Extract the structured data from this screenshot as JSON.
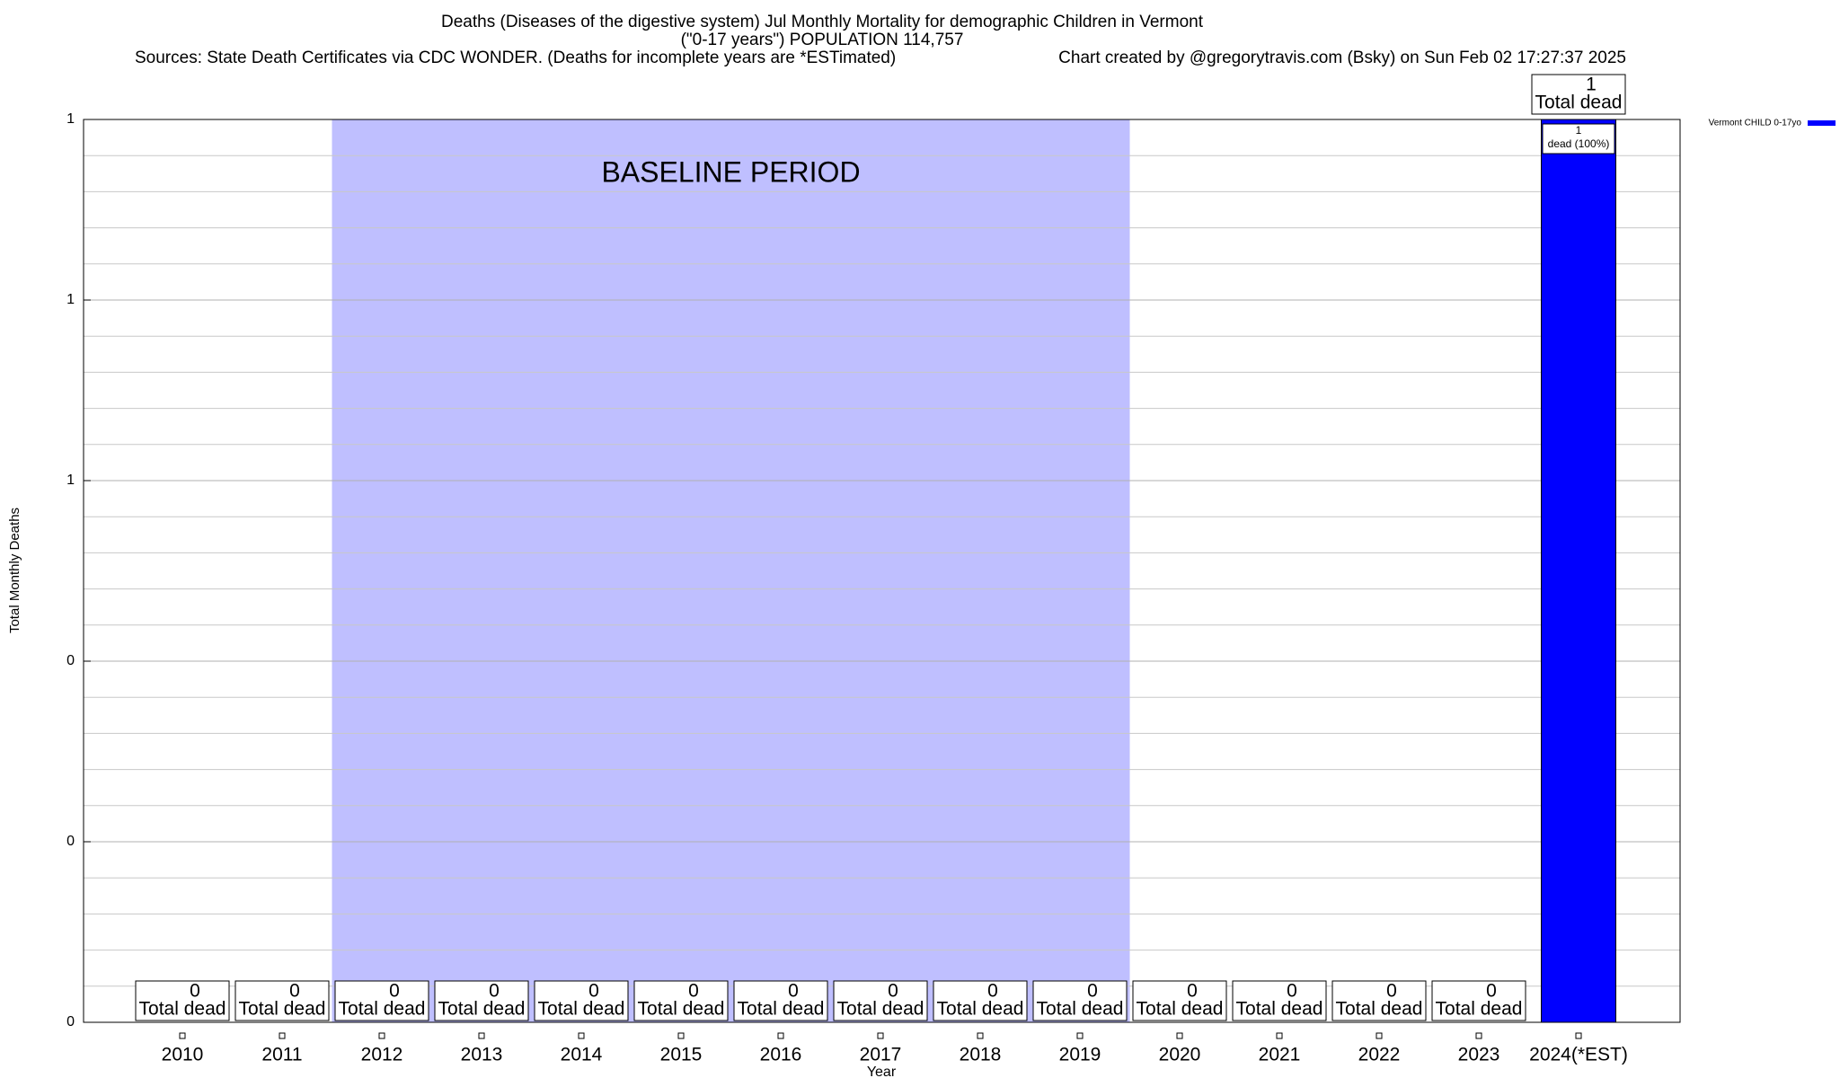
{
  "chart_data": {
    "type": "bar",
    "title": "Deaths (Diseases of the digestive system) Jul Monthly Mortality for demographic Children in Vermont",
    "subtitle": "(\"0-17 years\") POPULATION 114,757",
    "source": "Sources: State Death Certificates via CDC WONDER. (Deaths for incomplete years are *ESTimated)",
    "credit": "Chart created by @gregorytravis.com (Bsky) on Sun Feb 02 17:27:37 2025",
    "xlabel": "Year",
    "ylabel": "Total Monthly Deaths",
    "categories": [
      "2010",
      "2011",
      "2012",
      "2013",
      "2014",
      "2015",
      "2016",
      "2017",
      "2018",
      "2019",
      "2020",
      "2021",
      "2022",
      "2023",
      "2024(*EST)"
    ],
    "series": [
      {
        "name": "Vermont CHILD 0-17yo",
        "color": "#0000ff",
        "values": [
          0,
          0,
          0,
          0,
          0,
          0,
          0,
          0,
          0,
          0,
          0,
          0,
          0,
          0,
          1
        ]
      }
    ],
    "total_label": "Total dead",
    "percent_labels": [
      null,
      null,
      null,
      null,
      null,
      null,
      null,
      null,
      null,
      null,
      null,
      null,
      null,
      null,
      "dead (100%)"
    ],
    "baseline": {
      "label": "BASELINE PERIOD",
      "start": "2012",
      "end": "2019",
      "color": "#bfbfff"
    },
    "ylim": [
      0,
      1
    ],
    "yticks": [
      0,
      {
        "value": 0.2,
        "label": "0"
      },
      {
        "value": 0.4,
        "label": "0"
      },
      {
        "value": 0.6,
        "label": "1"
      },
      {
        "value": 0.8,
        "label": "1"
      },
      1
    ],
    "yminorticks": [
      0.04,
      0.08,
      0.12,
      0.16,
      0.24,
      0.28,
      0.32,
      0.36,
      0.44,
      0.48,
      0.52,
      0.56,
      0.64,
      0.68,
      0.72,
      0.76,
      0.84,
      0.88,
      0.92,
      0.96
    ],
    "grid": true,
    "legend": "top-right"
  }
}
